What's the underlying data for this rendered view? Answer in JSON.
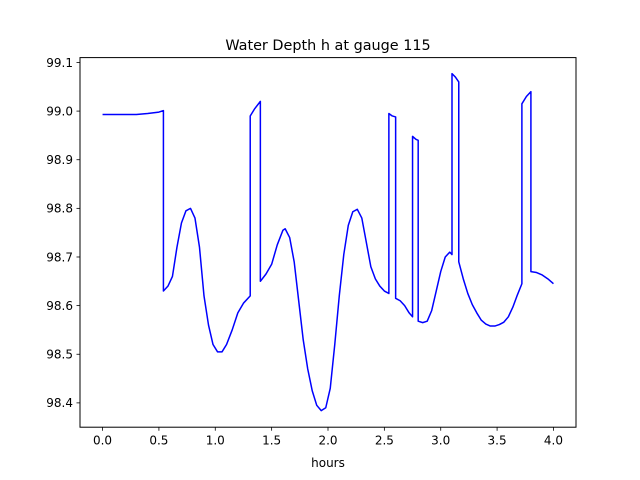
{
  "chart_data": {
    "type": "line",
    "title": "Water Depth h at gauge 115",
    "xlabel": "hours",
    "ylabel": "",
    "xlim": [
      -0.2,
      4.2
    ],
    "ylim": [
      98.35,
      99.11
    ],
    "xticks": [
      0.0,
      0.5,
      1.0,
      1.5,
      2.0,
      2.5,
      3.0,
      3.5,
      4.0
    ],
    "xtick_labels": [
      "0.0",
      "0.5",
      "1.0",
      "1.5",
      "2.0",
      "2.5",
      "3.0",
      "3.5",
      "4.0"
    ],
    "yticks": [
      98.4,
      98.5,
      98.6,
      98.7,
      98.8,
      98.9,
      99.0,
      99.1
    ],
    "ytick_labels": [
      "98.4",
      "98.5",
      "98.6",
      "98.7",
      "98.8",
      "98.9",
      "99.0",
      "99.1"
    ],
    "grid": false,
    "series": [
      {
        "color": "#0000ff",
        "points": [
          [
            0.0,
            98.993
          ],
          [
            0.1,
            98.993
          ],
          [
            0.2,
            98.993
          ],
          [
            0.3,
            98.993
          ],
          [
            0.4,
            98.995
          ],
          [
            0.5,
            98.998
          ],
          [
            0.54,
            99.001
          ],
          [
            0.54,
            98.63
          ],
          [
            0.58,
            98.64
          ],
          [
            0.62,
            98.66
          ],
          [
            0.66,
            98.72
          ],
          [
            0.7,
            98.77
          ],
          [
            0.74,
            98.795
          ],
          [
            0.78,
            98.8
          ],
          [
            0.82,
            98.78
          ],
          [
            0.86,
            98.72
          ],
          [
            0.9,
            98.62
          ],
          [
            0.94,
            98.56
          ],
          [
            0.98,
            98.52
          ],
          [
            1.02,
            98.505
          ],
          [
            1.06,
            98.505
          ],
          [
            1.1,
            98.52
          ],
          [
            1.15,
            98.55
          ],
          [
            1.2,
            98.585
          ],
          [
            1.25,
            98.605
          ],
          [
            1.31,
            98.62
          ],
          [
            1.31,
            98.99
          ],
          [
            1.35,
            99.005
          ],
          [
            1.4,
            99.02
          ],
          [
            1.4,
            98.65
          ],
          [
            1.45,
            98.665
          ],
          [
            1.5,
            98.685
          ],
          [
            1.55,
            98.725
          ],
          [
            1.6,
            98.755
          ],
          [
            1.62,
            98.758
          ],
          [
            1.66,
            98.74
          ],
          [
            1.7,
            98.69
          ],
          [
            1.74,
            98.61
          ],
          [
            1.78,
            98.53
          ],
          [
            1.82,
            98.47
          ],
          [
            1.86,
            98.425
          ],
          [
            1.9,
            98.395
          ],
          [
            1.94,
            98.384
          ],
          [
            1.98,
            98.39
          ],
          [
            2.02,
            98.43
          ],
          [
            2.06,
            98.52
          ],
          [
            2.1,
            98.62
          ],
          [
            2.14,
            98.705
          ],
          [
            2.18,
            98.765
          ],
          [
            2.22,
            98.793
          ],
          [
            2.26,
            98.798
          ],
          [
            2.3,
            98.78
          ],
          [
            2.34,
            98.73
          ],
          [
            2.38,
            98.68
          ],
          [
            2.42,
            98.655
          ],
          [
            2.46,
            98.64
          ],
          [
            2.5,
            98.63
          ],
          [
            2.54,
            98.625
          ],
          [
            2.54,
            98.995
          ],
          [
            2.57,
            98.99
          ],
          [
            2.6,
            98.988
          ],
          [
            2.6,
            98.615
          ],
          [
            2.64,
            98.61
          ],
          [
            2.68,
            98.6
          ],
          [
            2.72,
            98.585
          ],
          [
            2.75,
            98.577
          ],
          [
            2.75,
            98.948
          ],
          [
            2.78,
            98.942
          ],
          [
            2.8,
            98.94
          ],
          [
            2.8,
            98.568
          ],
          [
            2.84,
            98.565
          ],
          [
            2.88,
            98.568
          ],
          [
            2.92,
            98.59
          ],
          [
            2.96,
            98.63
          ],
          [
            3.0,
            98.67
          ],
          [
            3.04,
            98.7
          ],
          [
            3.08,
            98.71
          ],
          [
            3.1,
            98.705
          ],
          [
            3.1,
            99.077
          ],
          [
            3.13,
            99.07
          ],
          [
            3.16,
            99.06
          ],
          [
            3.16,
            98.69
          ],
          [
            3.2,
            98.655
          ],
          [
            3.24,
            98.625
          ],
          [
            3.28,
            98.602
          ],
          [
            3.32,
            98.585
          ],
          [
            3.36,
            98.57
          ],
          [
            3.4,
            98.562
          ],
          [
            3.44,
            98.558
          ],
          [
            3.48,
            98.558
          ],
          [
            3.52,
            98.561
          ],
          [
            3.56,
            98.566
          ],
          [
            3.6,
            98.577
          ],
          [
            3.64,
            98.597
          ],
          [
            3.68,
            98.622
          ],
          [
            3.72,
            98.645
          ],
          [
            3.72,
            99.015
          ],
          [
            3.76,
            99.03
          ],
          [
            3.8,
            99.04
          ],
          [
            3.8,
            98.67
          ],
          [
            3.85,
            98.668
          ],
          [
            3.9,
            98.663
          ],
          [
            3.95,
            98.655
          ],
          [
            4.0,
            98.645
          ]
        ]
      }
    ]
  }
}
